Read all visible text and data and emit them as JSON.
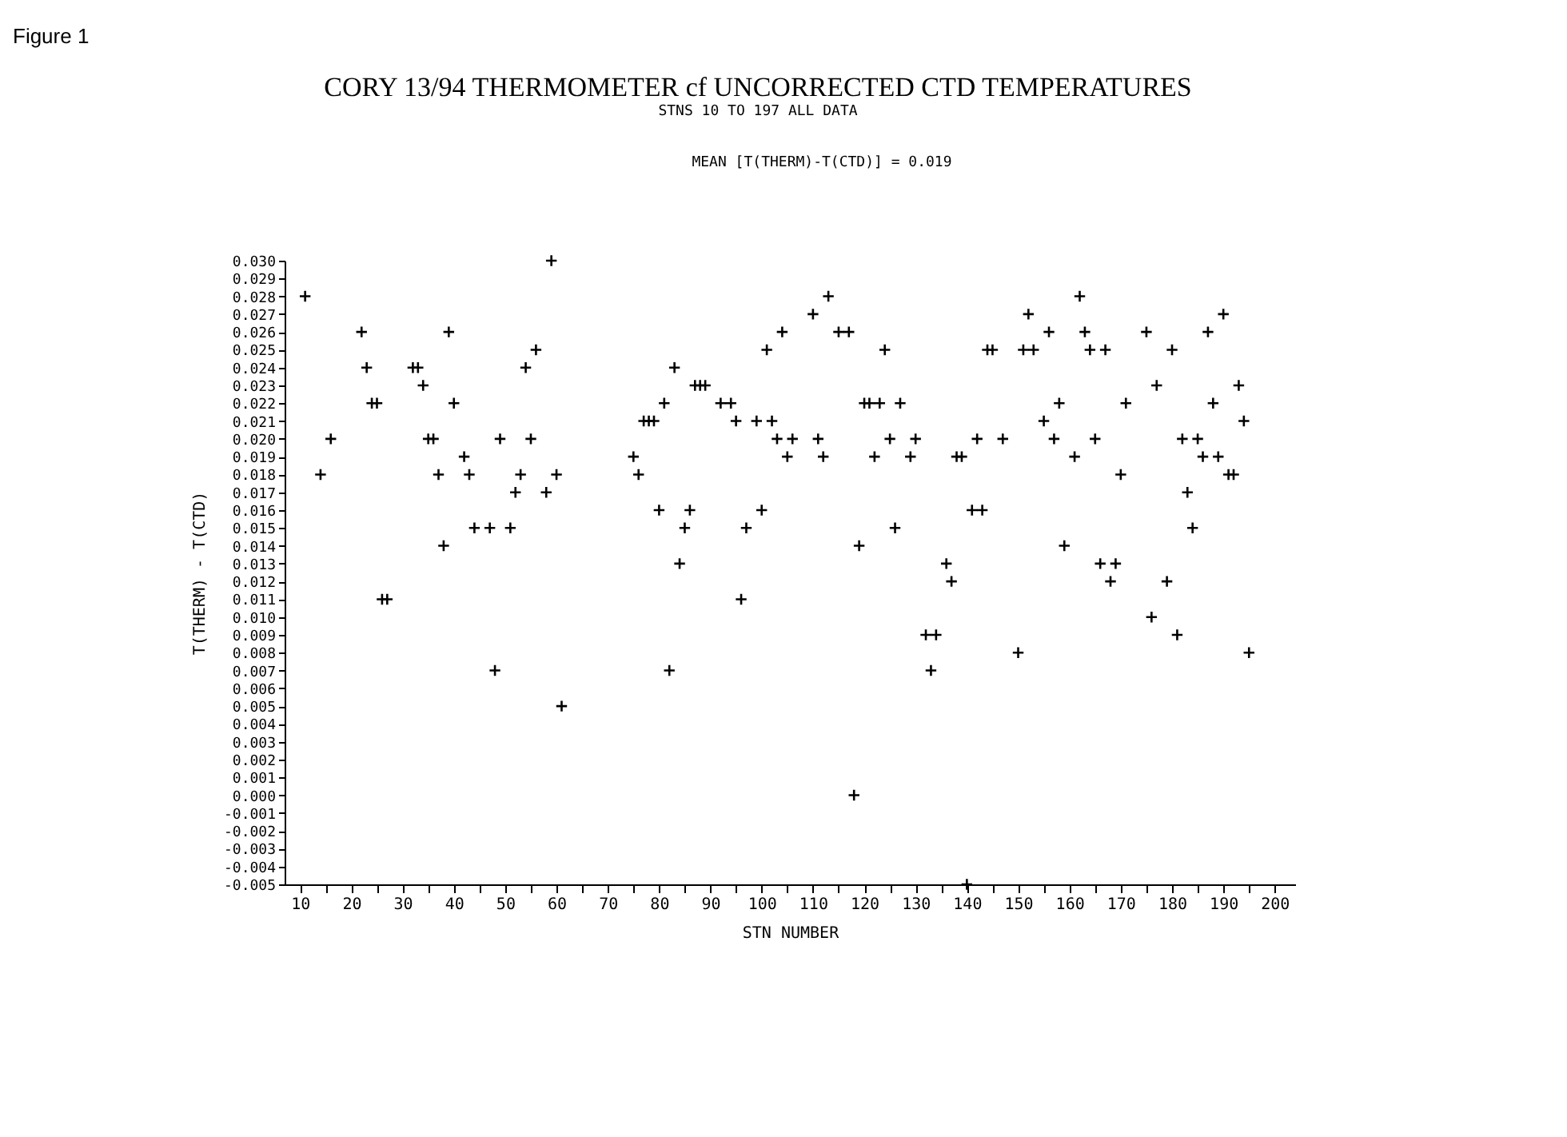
{
  "chart_data": {
    "type": "scatter",
    "title": "CORY 13/94 THERMOMETER cf UNCORRECTED CTD TEMPERATURES",
    "subtitle": "STNS 10 TO  197  ALL DATA",
    "annotations": [
      "Figure 1",
      "MEAN [T(THERM)-T(CTD)] =  0.019"
    ],
    "xlabel": "STN NUMBER",
    "ylabel": "T(THERM) - T(CTD)",
    "x": [
      11,
      14,
      16,
      22,
      23,
      24,
      25,
      26,
      27,
      32,
      33,
      34,
      35,
      36,
      37,
      38,
      39,
      40,
      42,
      43,
      44,
      47,
      48,
      49,
      51,
      52,
      53,
      54,
      55,
      56,
      58,
      59,
      60,
      61,
      75,
      76,
      77,
      78,
      79,
      80,
      81,
      82,
      83,
      84,
      85,
      86,
      87,
      88,
      89,
      92,
      94,
      95,
      96,
      97,
      99,
      100,
      101,
      102,
      103,
      104,
      105,
      106,
      110,
      111,
      112,
      113,
      115,
      117,
      118,
      119,
      120,
      121,
      122,
      123,
      124,
      125,
      126,
      127,
      129,
      130,
      132,
      133,
      134,
      136,
      137,
      138,
      139,
      140,
      141,
      142,
      143,
      144,
      145,
      147,
      150,
      151,
      152,
      153,
      155,
      156,
      157,
      158,
      159,
      161,
      162,
      163,
      164,
      165,
      166,
      167,
      168,
      169,
      170,
      171,
      175,
      176,
      177,
      179,
      180,
      181,
      182,
      183,
      184,
      185,
      186,
      187,
      188,
      189,
      190,
      191,
      192,
      193,
      194,
      195
    ],
    "series": [
      {
        "color": "#000000",
        "values": [
          0.028,
          0.018,
          0.02,
          0.026,
          0.024,
          0.022,
          0.022,
          0.011,
          0.011,
          0.024,
          0.024,
          0.023,
          0.02,
          0.02,
          0.018,
          0.014,
          0.026,
          0.022,
          0.019,
          0.018,
          0.015,
          0.015,
          0.007,
          0.02,
          0.015,
          0.017,
          0.018,
          0.024,
          0.02,
          0.025,
          0.017,
          0.03,
          0.018,
          0.005,
          0.019,
          0.018,
          0.021,
          0.021,
          0.021,
          0.016,
          0.022,
          0.007,
          0.024,
          0.013,
          0.015,
          0.016,
          0.023,
          0.023,
          0.023,
          0.022,
          0.022,
          0.021,
          0.011,
          0.015,
          0.021,
          0.016,
          0.025,
          0.021,
          0.02,
          0.026,
          0.019,
          0.02,
          0.027,
          0.02,
          0.019,
          0.028,
          0.026,
          0.026,
          0.0,
          0.014,
          0.022,
          0.022,
          0.019,
          0.022,
          0.025,
          0.02,
          0.015,
          0.022,
          0.019,
          0.02,
          0.009,
          0.007,
          0.009,
          0.013,
          0.012,
          0.019,
          0.019,
          -0.005,
          0.016,
          0.02,
          0.016,
          0.025,
          0.025,
          0.02,
          0.008,
          0.025,
          0.027,
          0.025,
          0.021,
          0.026,
          0.02,
          0.022,
          0.014,
          0.019,
          0.028,
          0.026,
          0.025,
          0.02,
          0.013,
          0.025,
          0.012,
          0.013,
          0.018,
          0.022,
          0.026,
          0.01,
          0.023,
          0.012,
          0.025,
          0.009,
          0.02,
          0.017,
          0.015,
          0.02,
          0.019,
          0.026,
          0.022,
          0.019,
          0.027,
          0.018,
          0.018,
          0.023,
          0.021,
          0.008
        ]
      }
    ],
    "marker": "cross",
    "grid": false,
    "xlim": [
      7,
      204
    ],
    "xticks": [
      10,
      {
        "value": 15,
        "label": null
      },
      20,
      {
        "value": 25,
        "label": null
      },
      30,
      {
        "value": 35,
        "label": null
      },
      40,
      {
        "value": 45,
        "label": null
      },
      50,
      {
        "value": 55,
        "label": null
      },
      60,
      {
        "value": 65,
        "label": null
      },
      70,
      {
        "value": 75,
        "label": null
      },
      80,
      {
        "value": 85,
        "label": null
      },
      90,
      {
        "value": 95,
        "label": null
      },
      100,
      {
        "value": 105,
        "label": null
      },
      110,
      {
        "value": 115,
        "label": null
      },
      120,
      {
        "value": 125,
        "label": null
      },
      130,
      {
        "value": 135,
        "label": null
      },
      140,
      {
        "value": 145,
        "label": null
      },
      150,
      {
        "value": 155,
        "label": null
      },
      160,
      {
        "value": 165,
        "label": null
      },
      170,
      {
        "value": 175,
        "label": null
      },
      180,
      {
        "value": 185,
        "label": null
      },
      190,
      {
        "value": 195,
        "label": null
      },
      200
    ],
    "ylim": [
      -0.005,
      0.03
    ],
    "yticks": [
      {
        "value": 0.03,
        "label": "0.030"
      },
      {
        "value": 0.029,
        "label": "0.029"
      },
      {
        "value": 0.028,
        "label": "0.028"
      },
      {
        "value": 0.027,
        "label": "0.027"
      },
      {
        "value": 0.026,
        "label": "0.026"
      },
      {
        "value": 0.025,
        "label": "0.025"
      },
      {
        "value": 0.024,
        "label": "0.024"
      },
      {
        "value": 0.023,
        "label": "0.023"
      },
      {
        "value": 0.022,
        "label": "0.022"
      },
      {
        "value": 0.021,
        "label": "0.021"
      },
      {
        "value": 0.02,
        "label": "0.020"
      },
      {
        "value": 0.019,
        "label": "0.019"
      },
      {
        "value": 0.018,
        "label": "0.018"
      },
      {
        "value": 0.017,
        "label": "0.017"
      },
      {
        "value": 0.016,
        "label": "0.016"
      },
      {
        "value": 0.015,
        "label": "0.015"
      },
      {
        "value": 0.014,
        "label": "0.014"
      },
      {
        "value": 0.013,
        "label": "0.013"
      },
      {
        "value": 0.012,
        "label": "0.012"
      },
      {
        "value": 0.011,
        "label": "0.011"
      },
      {
        "value": 0.01,
        "label": "0.010"
      },
      {
        "value": 0.009,
        "label": "0.009"
      },
      {
        "value": 0.008,
        "label": "0.008"
      },
      {
        "value": 0.007,
        "label": "0.007"
      },
      {
        "value": 0.006,
        "label": "0.006"
      },
      {
        "value": 0.005,
        "label": "0.005"
      },
      {
        "value": 0.004,
        "label": "0.004"
      },
      {
        "value": 0.003,
        "label": "0.003"
      },
      {
        "value": 0.002,
        "label": "0.002"
      },
      {
        "value": 0.001,
        "label": "0.001"
      },
      {
        "value": 0.0,
        "label": "0.000"
      },
      {
        "value": -0.001,
        "label": "-0.001"
      },
      {
        "value": -0.002,
        "label": "-0.002"
      },
      {
        "value": -0.003,
        "label": "-0.003"
      },
      {
        "value": -0.004,
        "label": "-0.004"
      },
      {
        "value": -0.005,
        "label": "-0.005"
      }
    ]
  }
}
